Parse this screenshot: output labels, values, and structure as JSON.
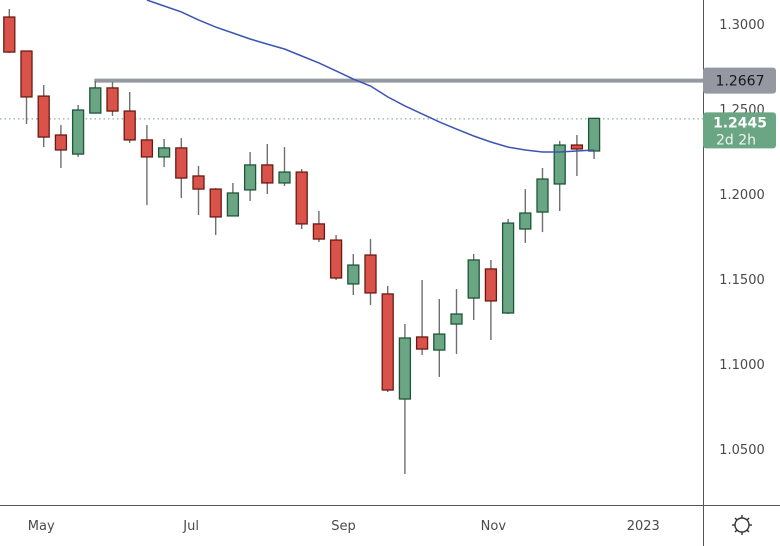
{
  "chart_data": {
    "type": "candlestick",
    "interval": "weekly",
    "title": "",
    "ylim": [
      1.02,
      1.314
    ],
    "y_ticks": [
      "1.3000",
      "1.2500",
      "1.2000",
      "1.1500",
      "1.1000",
      "1.0500"
    ],
    "x_ticks": [
      {
        "label": "May",
        "date": "2022-05-01"
      },
      {
        "label": "Jul",
        "date": "2022-07-01"
      },
      {
        "label": "Sep",
        "date": "2022-09-01"
      },
      {
        "label": "Nov",
        "date": "2022-11-01"
      },
      {
        "label": "2023",
        "date": "2023-01-01"
      }
    ],
    "grid": false,
    "colors": {
      "up": "#6aa584",
      "up_border": "#1e5637",
      "down": "#d9534a",
      "down_border": "#6b1a12",
      "wick": "#6f6f6f",
      "moving_average": "#3a55b4",
      "level_line": "#9598a1",
      "last_price": "#6aa584"
    },
    "candles": [
      {
        "date": "2022-04-18",
        "o": 1.3041,
        "h": 1.3088,
        "l": 1.2829,
        "c": 1.2835
      },
      {
        "date": "2022-04-25",
        "o": 1.2841,
        "h": 1.2841,
        "l": 1.2412,
        "c": 1.2571
      },
      {
        "date": "2022-05-02",
        "o": 1.2576,
        "h": 1.2641,
        "l": 1.2276,
        "c": 1.2335
      },
      {
        "date": "2022-05-09",
        "o": 1.2347,
        "h": 1.2406,
        "l": 1.2153,
        "c": 1.2259
      },
      {
        "date": "2022-05-16",
        "o": 1.2235,
        "h": 1.2524,
        "l": 1.2218,
        "c": 1.2494
      },
      {
        "date": "2022-05-23",
        "o": 1.2476,
        "h": 1.2665,
        "l": 1.2476,
        "c": 1.2624
      },
      {
        "date": "2022-05-30",
        "o": 1.2624,
        "h": 1.2659,
        "l": 1.2459,
        "c": 1.2488
      },
      {
        "date": "2022-06-06",
        "o": 1.2488,
        "h": 1.26,
        "l": 1.23,
        "c": 1.2318
      },
      {
        "date": "2022-06-13",
        "o": 1.2318,
        "h": 1.2406,
        "l": 1.1935,
        "c": 1.2218
      },
      {
        "date": "2022-06-20",
        "o": 1.2218,
        "h": 1.2324,
        "l": 1.2159,
        "c": 1.2271
      },
      {
        "date": "2022-06-27",
        "o": 1.2271,
        "h": 1.2329,
        "l": 1.1976,
        "c": 1.2094
      },
      {
        "date": "2022-07-04",
        "o": 1.2106,
        "h": 1.2165,
        "l": 1.1876,
        "c": 1.2029
      },
      {
        "date": "2022-07-11",
        "o": 1.2029,
        "h": 1.2035,
        "l": 1.1759,
        "c": 1.1865
      },
      {
        "date": "2022-07-18",
        "o": 1.1871,
        "h": 1.2065,
        "l": 1.1871,
        "c": 1.2006
      },
      {
        "date": "2022-07-25",
        "o": 1.2024,
        "h": 1.2247,
        "l": 1.1959,
        "c": 1.2171
      },
      {
        "date": "2022-08-01",
        "o": 1.2171,
        "h": 1.2294,
        "l": 1.2,
        "c": 1.2065
      },
      {
        "date": "2022-08-08",
        "o": 1.2065,
        "h": 1.2276,
        "l": 1.2047,
        "c": 1.2129
      },
      {
        "date": "2022-08-15",
        "o": 1.2129,
        "h": 1.2147,
        "l": 1.1794,
        "c": 1.1824
      },
      {
        "date": "2022-08-22",
        "o": 1.1824,
        "h": 1.19,
        "l": 1.1718,
        "c": 1.1735
      },
      {
        "date": "2022-08-29",
        "o": 1.1729,
        "h": 1.1759,
        "l": 1.1494,
        "c": 1.1506
      },
      {
        "date": "2022-09-05",
        "o": 1.1471,
        "h": 1.1647,
        "l": 1.1406,
        "c": 1.1582
      },
      {
        "date": "2022-09-12",
        "o": 1.1641,
        "h": 1.1735,
        "l": 1.1347,
        "c": 1.1418
      },
      {
        "date": "2022-09-19",
        "o": 1.1412,
        "h": 1.1459,
        "l": 1.0835,
        "c": 1.0847
      },
      {
        "date": "2022-09-26",
        "o": 1.0794,
        "h": 1.1235,
        "l": 1.0353,
        "c": 1.1153
      },
      {
        "date": "2022-10-03",
        "o": 1.1159,
        "h": 1.1494,
        "l": 1.1053,
        "c": 1.1088
      },
      {
        "date": "2022-10-10",
        "o": 1.1082,
        "h": 1.1382,
        "l": 1.0924,
        "c": 1.1176
      },
      {
        "date": "2022-10-17",
        "o": 1.1235,
        "h": 1.1441,
        "l": 1.1059,
        "c": 1.1294
      },
      {
        "date": "2022-10-24",
        "o": 1.1388,
        "h": 1.1647,
        "l": 1.1259,
        "c": 1.1612
      },
      {
        "date": "2022-10-31",
        "o": 1.1559,
        "h": 1.1612,
        "l": 1.1141,
        "c": 1.1371
      },
      {
        "date": "2022-11-07",
        "o": 1.13,
        "h": 1.1853,
        "l": 1.1294,
        "c": 1.1829
      },
      {
        "date": "2022-11-14",
        "o": 1.1794,
        "h": 1.2029,
        "l": 1.1712,
        "c": 1.1888
      },
      {
        "date": "2022-11-21",
        "o": 1.1894,
        "h": 1.2153,
        "l": 1.1776,
        "c": 1.2088
      },
      {
        "date": "2022-11-28",
        "o": 1.2059,
        "h": 1.2312,
        "l": 1.19,
        "c": 1.2288
      },
      {
        "date": "2022-12-05",
        "o": 1.2288,
        "h": 1.2347,
        "l": 1.2106,
        "c": 1.2265
      },
      {
        "date": "2022-12-12",
        "o": 1.2253,
        "h": 1.2447,
        "l": 1.2206,
        "c": 1.2445
      }
    ],
    "moving_average": [
      {
        "date": "2022-06-13",
        "v": 1.3141
      },
      {
        "date": "2022-06-20",
        "v": 1.3106
      },
      {
        "date": "2022-06-27",
        "v": 1.3071
      },
      {
        "date": "2022-07-04",
        "v": 1.3024
      },
      {
        "date": "2022-07-11",
        "v": 1.2982
      },
      {
        "date": "2022-07-18",
        "v": 1.2947
      },
      {
        "date": "2022-07-25",
        "v": 1.2912
      },
      {
        "date": "2022-08-01",
        "v": 1.2882
      },
      {
        "date": "2022-08-08",
        "v": 1.2853
      },
      {
        "date": "2022-08-15",
        "v": 1.2812
      },
      {
        "date": "2022-08-22",
        "v": 1.2771
      },
      {
        "date": "2022-08-29",
        "v": 1.2724
      },
      {
        "date": "2022-09-05",
        "v": 1.2676
      },
      {
        "date": "2022-09-12",
        "v": 1.2635
      },
      {
        "date": "2022-09-19",
        "v": 1.2571
      },
      {
        "date": "2022-09-26",
        "v": 1.2518
      },
      {
        "date": "2022-10-03",
        "v": 1.2471
      },
      {
        "date": "2022-10-10",
        "v": 1.2424
      },
      {
        "date": "2022-10-17",
        "v": 1.2382
      },
      {
        "date": "2022-10-24",
        "v": 1.2341
      },
      {
        "date": "2022-10-31",
        "v": 1.2306
      },
      {
        "date": "2022-11-07",
        "v": 1.2276
      },
      {
        "date": "2022-11-14",
        "v": 1.2259
      },
      {
        "date": "2022-11-21",
        "v": 1.2247
      },
      {
        "date": "2022-11-28",
        "v": 1.2247
      },
      {
        "date": "2022-12-05",
        "v": 1.2253
      },
      {
        "date": "2022-12-12",
        "v": 1.2259
      }
    ],
    "level_line": {
      "value": 1.2667,
      "label": "1.2667",
      "from_date": "2022-05-23"
    },
    "last_price": {
      "value": 1.2445,
      "label": "1.2445",
      "countdown": "2d 2h"
    }
  },
  "toolbar": {
    "settings_icon": "gear-icon"
  }
}
